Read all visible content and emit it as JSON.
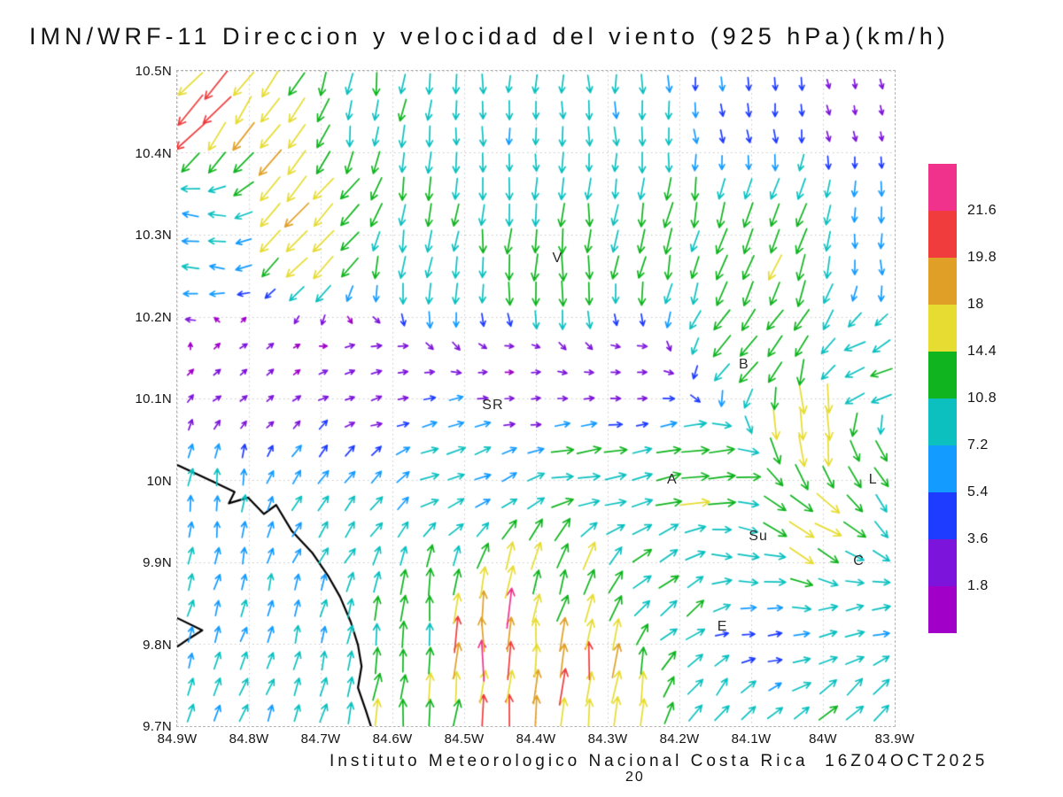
{
  "title": "IMN/WRF-11 Direccion y velocidad del viento (925 hPa)(km/h)",
  "footer": {
    "text": "Instituto Meteorologico Nacional Costa Rica  16Z04OCT2025",
    "page": "20"
  },
  "axes": {
    "x": {
      "min": -84.9,
      "max": -83.9,
      "ticks": [
        {
          "value": -84.9,
          "label": "84.9W"
        },
        {
          "value": -84.8,
          "label": "84.8W"
        },
        {
          "value": -84.7,
          "label": "84.7W"
        },
        {
          "value": -84.6,
          "label": "84.6W"
        },
        {
          "value": -84.5,
          "label": "84.5W"
        },
        {
          "value": -84.4,
          "label": "84.4W"
        },
        {
          "value": -84.3,
          "label": "84.3W"
        },
        {
          "value": -84.2,
          "label": "84.2W"
        },
        {
          "value": -84.1,
          "label": "84.1W"
        },
        {
          "value": -84.0,
          "label": "84W"
        },
        {
          "value": -83.9,
          "label": "83.9W"
        }
      ]
    },
    "y": {
      "min": 9.7,
      "max": 10.5,
      "ticks": [
        {
          "value": 10.5,
          "label": "10.5N"
        },
        {
          "value": 10.4,
          "label": "10.4N"
        },
        {
          "value": 10.3,
          "label": "10.3N"
        },
        {
          "value": 10.2,
          "label": "10.2N"
        },
        {
          "value": 10.1,
          "label": "10.1N"
        },
        {
          "value": 10.0,
          "label": "10N"
        },
        {
          "value": 9.9,
          "label": "9.9N"
        },
        {
          "value": 9.8,
          "label": "9.8N"
        },
        {
          "value": 9.7,
          "label": "9.7N"
        }
      ]
    }
  },
  "colorbar": {
    "labels_top_down": [
      "21.6",
      "19.8",
      "18",
      "14.4",
      "10.8",
      "7.2",
      "5.4",
      "3.6",
      "1.8"
    ],
    "colors_top_down": [
      "#f0328c",
      "#f03c3c",
      "#e0a028",
      "#e6dc32",
      "#0fb41e",
      "#0cc0c0",
      "#149bff",
      "#1e3cff",
      "#7d14dc",
      "#a000c8"
    ]
  },
  "stations": [
    {
      "label": "V",
      "lon": -84.37,
      "lat": 10.27
    },
    {
      "label": "B",
      "lon": -84.11,
      "lat": 10.14
    },
    {
      "label": "SR",
      "lon": -84.46,
      "lat": 10.09
    },
    {
      "label": "A",
      "lon": -84.21,
      "lat": 10.0
    },
    {
      "label": "Su",
      "lon": -84.09,
      "lat": 9.93
    },
    {
      "label": "C",
      "lon": -83.95,
      "lat": 9.9
    },
    {
      "label": "E",
      "lon": -84.14,
      "lat": 9.82
    },
    {
      "label": "L",
      "lon": -83.93,
      "lat": 10.0
    }
  ],
  "chart_data": {
    "type": "vector-field",
    "variable": "Direccion y velocidad del viento",
    "model": "IMN/WRF-11",
    "level": "925 hPa",
    "units": "km/h",
    "valid_time": "16Z04OCT2025",
    "lon_range_deg_west": [
      84.9,
      83.9
    ],
    "lat_range_deg_north": [
      9.7,
      10.5
    ],
    "grid": {
      "nx": 27,
      "ny": 25
    },
    "speed_levels": [
      1.8,
      3.6,
      5.4,
      7.2,
      10.8,
      14.4,
      18,
      19.8,
      21.6
    ],
    "speed_colors": [
      "#a000c8",
      "#7d14dc",
      "#1e3cff",
      "#149bff",
      "#0cc0c0",
      "#0fb41e",
      "#e6dc32",
      "#e0a028",
      "#f03c3c",
      "#f0328c"
    ],
    "interpolation": "idw",
    "control_point_format": [
      "lon_deg_east",
      "lat_deg_north",
      "direction_toward_deg_math",
      "speed_kmh"
    ],
    "control_points": [
      [
        -84.88,
        10.47,
        230,
        20
      ],
      [
        -84.78,
        10.44,
        235,
        17
      ],
      [
        -84.63,
        10.45,
        262,
        10
      ],
      [
        -84.45,
        10.46,
        268,
        8
      ],
      [
        -84.28,
        10.46,
        272,
        8
      ],
      [
        -84.12,
        10.46,
        278,
        5
      ],
      [
        -83.93,
        10.46,
        285,
        2.5
      ],
      [
        -84.87,
        10.3,
        172,
        7
      ],
      [
        -84.72,
        10.32,
        228,
        16
      ],
      [
        -84.55,
        10.28,
        262,
        11
      ],
      [
        -84.38,
        10.26,
        268,
        13
      ],
      [
        -84.22,
        10.28,
        258,
        12
      ],
      [
        -84.07,
        10.27,
        250,
        14
      ],
      [
        -83.92,
        10.28,
        272,
        6
      ],
      [
        -84.8,
        10.13,
        35,
        2
      ],
      [
        -84.62,
        10.12,
        15,
        3
      ],
      [
        -84.42,
        10.12,
        5,
        2
      ],
      [
        -84.27,
        10.12,
        0,
        2.5
      ],
      [
        -84.1,
        10.16,
        232,
        13
      ],
      [
        -83.94,
        10.12,
        205,
        11
      ],
      [
        -84.86,
        9.97,
        82,
        7
      ],
      [
        -84.68,
        9.97,
        55,
        7
      ],
      [
        -84.5,
        10.02,
        20,
        8
      ],
      [
        -84.32,
        10.0,
        8,
        11
      ],
      [
        -84.17,
        10.01,
        12,
        14
      ],
      [
        -84.01,
        10.06,
        278,
        17
      ],
      [
        -83.92,
        10.02,
        300,
        11
      ],
      [
        -84.03,
        9.94,
        330,
        15
      ],
      [
        -84.86,
        9.82,
        72,
        7
      ],
      [
        -84.7,
        9.8,
        78,
        8
      ],
      [
        -84.58,
        9.8,
        82,
        12
      ],
      [
        -84.46,
        9.8,
        88,
        21
      ],
      [
        -84.33,
        9.77,
        86,
        19
      ],
      [
        -84.36,
        9.89,
        70,
        14
      ],
      [
        -84.2,
        9.86,
        38,
        10
      ],
      [
        -84.1,
        9.81,
        10,
        5
      ],
      [
        -83.96,
        9.81,
        15,
        8
      ],
      [
        -84.1,
        9.9,
        355,
        9
      ],
      [
        -84.78,
        9.72,
        70,
        8
      ],
      [
        -84.57,
        9.72,
        84,
        14
      ],
      [
        -84.44,
        9.72,
        87,
        18
      ],
      [
        -84.3,
        9.72,
        84,
        16
      ],
      [
        -84.15,
        9.73,
        50,
        9
      ],
      [
        -83.95,
        9.72,
        45,
        11
      ]
    ],
    "coastlines": [
      [
        [
          -84.9,
          10.019
        ],
        [
          -84.851,
          9.999
        ],
        [
          -84.82,
          9.986
        ],
        [
          -84.828,
          9.972
        ],
        [
          -84.801,
          9.979
        ],
        [
          -84.779,
          9.959
        ],
        [
          -84.762,
          9.97
        ],
        [
          -84.74,
          9.938
        ],
        [
          -84.712,
          9.912
        ],
        [
          -84.69,
          9.884
        ],
        [
          -84.673,
          9.858
        ],
        [
          -84.658,
          9.827
        ],
        [
          -84.648,
          9.799
        ],
        [
          -84.643,
          9.773
        ],
        [
          -84.648,
          9.747
        ],
        [
          -84.637,
          9.719
        ],
        [
          -84.63,
          9.7
        ]
      ],
      [
        [
          -84.9,
          9.832
        ],
        [
          -84.865,
          9.817
        ],
        [
          -84.885,
          9.806
        ],
        [
          -84.9,
          9.797
        ]
      ]
    ]
  }
}
